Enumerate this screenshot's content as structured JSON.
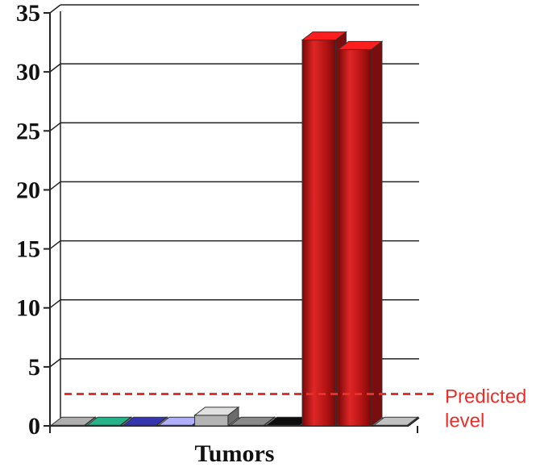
{
  "chart_data": {
    "type": "bar",
    "title": "",
    "xlabel": "Tumors",
    "ylabel": "",
    "ylim": [
      0,
      35
    ],
    "yticks": [
      0,
      5,
      10,
      15,
      20,
      25,
      30,
      35
    ],
    "grid": true,
    "values": [
      0.05,
      0.05,
      0.05,
      0.05,
      0.9,
      0.05,
      0.05,
      32.7,
      31.9,
      0.05
    ],
    "bar_colors": [
      "#8c8c8c",
      "#1f8f6e",
      "#2a2a8c",
      "#8c8cc8",
      "#b3b3b3",
      "#6e6e6e",
      "#0a0a0a",
      "#cc1818",
      "#cc1818",
      "#9a9a9a"
    ],
    "reference_line": {
      "value": 2.7,
      "label_line1": "Predicted",
      "label_line2": "level",
      "color": "#e8302a"
    }
  }
}
